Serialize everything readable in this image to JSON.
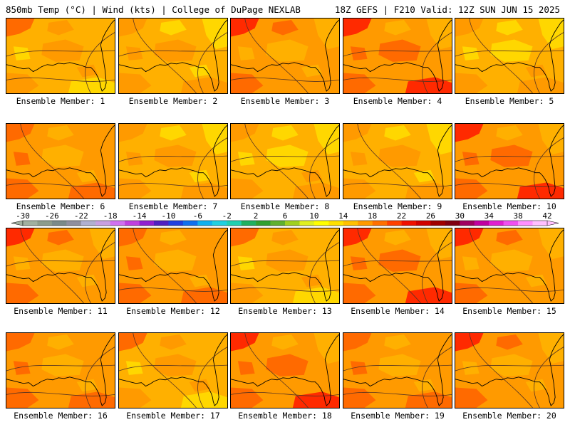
{
  "header": {
    "left": "850mb Temp (°C) | Wind (kts) | College of DuPage NEXLAB",
    "right": "18Z GEFS | F210 Valid: 12Z SUN JUN 15 2025"
  },
  "panels": [
    {
      "label": "Ensemble Member: 1",
      "variant": 0
    },
    {
      "label": "Ensemble Member: 2",
      "variant": 1
    },
    {
      "label": "Ensemble Member: 3",
      "variant": 2
    },
    {
      "label": "Ensemble Member: 4",
      "variant": 3
    },
    {
      "label": "Ensemble Member: 5",
      "variant": 4
    },
    {
      "label": "Ensemble Member: 6",
      "variant": 5
    },
    {
      "label": "Ensemble Member: 7",
      "variant": 1
    },
    {
      "label": "Ensemble Member: 8",
      "variant": 4
    },
    {
      "label": "Ensemble Member: 9",
      "variant": 1
    },
    {
      "label": "Ensemble Member: 10",
      "variant": 3
    },
    {
      "label": "Ensemble Member: 11",
      "variant": 2
    },
    {
      "label": "Ensemble Member: 12",
      "variant": 5
    },
    {
      "label": "Ensemble Member: 13",
      "variant": 0
    },
    {
      "label": "Ensemble Member: 14",
      "variant": 3
    },
    {
      "label": "Ensemble Member: 15",
      "variant": 2
    },
    {
      "label": "Ensemble Member: 16",
      "variant": 5
    },
    {
      "label": "Ensemble Member: 17",
      "variant": 0
    },
    {
      "label": "Ensemble Member: 18",
      "variant": 3
    },
    {
      "label": "Ensemble Member: 19",
      "variant": 5
    },
    {
      "label": "Ensemble Member: 20",
      "variant": 2
    }
  ],
  "colorbar": {
    "labels": [
      "-30",
      "-26",
      "-22",
      "-18",
      "-14",
      "-10",
      "-6",
      "-2",
      "2",
      "6",
      "10",
      "14",
      "18",
      "22",
      "26",
      "30",
      "34",
      "38",
      "42"
    ],
    "colors": [
      "#a0b0a0",
      "#8c9c8c",
      "#7a8a8a",
      "#8f8f9f",
      "#b0b0d0",
      "#c8a0e0",
      "#d070f0",
      "#c040e0",
      "#9020d0",
      "#5020c0",
      "#2040e0",
      "#1070f0",
      "#10b0f0",
      "#20d0e0",
      "#20d0b0",
      "#20b060",
      "#30a030",
      "#60b030",
      "#a0d020",
      "#e0f020",
      "#ffff00",
      "#ffe000",
      "#ffc000",
      "#ff9a00",
      "#ff7000",
      "#ff4000",
      "#f01000",
      "#d00000",
      "#a00000",
      "#800010",
      "#a00060",
      "#c000a0",
      "#e020d0",
      "#f050f0",
      "#ff90ff",
      "#ffc0ff"
    ],
    "map_colors": {
      "c14": "#ffd700",
      "c18": "#ffb000",
      "c22": "#ff9a00",
      "c26": "#ff6a00",
      "c30": "#ff2a00",
      "c34": "#e80000"
    }
  }
}
